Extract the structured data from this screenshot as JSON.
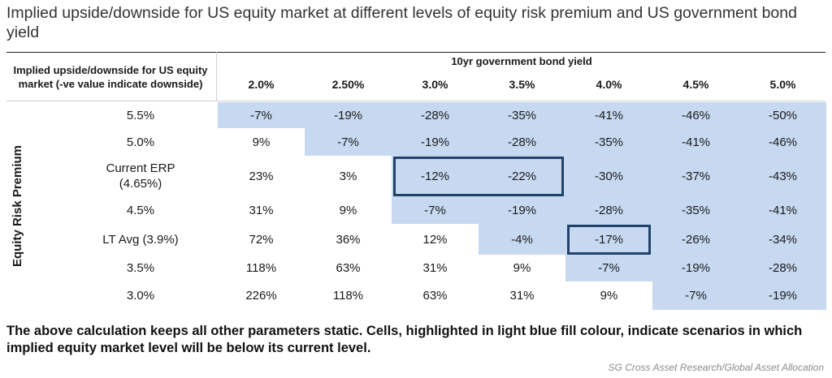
{
  "title": "Implied upside/downside for US equity market at different levels of equity risk premium and US government bond yield",
  "footnote": "The above calculation keeps all other parameters static. Cells, highlighted in light blue fill colour, indicate scenarios in which implied equity market level will be below its current level.",
  "source": "SG Cross Asset Research/Global Asset Allocation",
  "chart_data": {
    "type": "table",
    "corner_label": "Implied upside/downside for US equity market (-ve value indicate downside)",
    "column_group_label": "10yr government bond yield",
    "row_group_label": "Equity Risk Premium",
    "columns": [
      "2.0%",
      "2.50%",
      "3.0%",
      "3.5%",
      "4.0%",
      "4.5%",
      "5.0%"
    ],
    "rows": [
      {
        "label": "5.5%",
        "values": [
          "-7%",
          "-19%",
          "-28%",
          "-35%",
          "-41%",
          "-46%",
          "-50%"
        ]
      },
      {
        "label": "5.0%",
        "values": [
          "9%",
          "-7%",
          "-19%",
          "-28%",
          "-35%",
          "-41%",
          "-46%"
        ]
      },
      {
        "label": "Current ERP\n(4.65%)",
        "values": [
          "23%",
          "3%",
          "-12%",
          "-22%",
          "-30%",
          "-37%",
          "-43%"
        ]
      },
      {
        "label": "4.5%",
        "values": [
          "31%",
          "9%",
          "-7%",
          "-19%",
          "-28%",
          "-35%",
          "-41%"
        ]
      },
      {
        "label": "LT Avg (3.9%)",
        "values": [
          "72%",
          "36%",
          "12%",
          "-4%",
          "-17%",
          "-26%",
          "-34%"
        ]
      },
      {
        "label": "3.5%",
        "values": [
          "118%",
          "63%",
          "31%",
          "9%",
          "-7%",
          "-19%",
          "-28%"
        ]
      },
      {
        "label": "3.0%",
        "values": [
          "226%",
          "118%",
          "63%",
          "31%",
          "9%",
          "-7%",
          "-19%"
        ]
      }
    ],
    "highlight_color": "#c6d9f1",
    "outline_color": "#23426a",
    "outlined_cells": [
      {
        "row": 2,
        "cols": [
          2,
          3
        ]
      },
      {
        "row": 4,
        "cols": [
          4
        ]
      }
    ]
  }
}
